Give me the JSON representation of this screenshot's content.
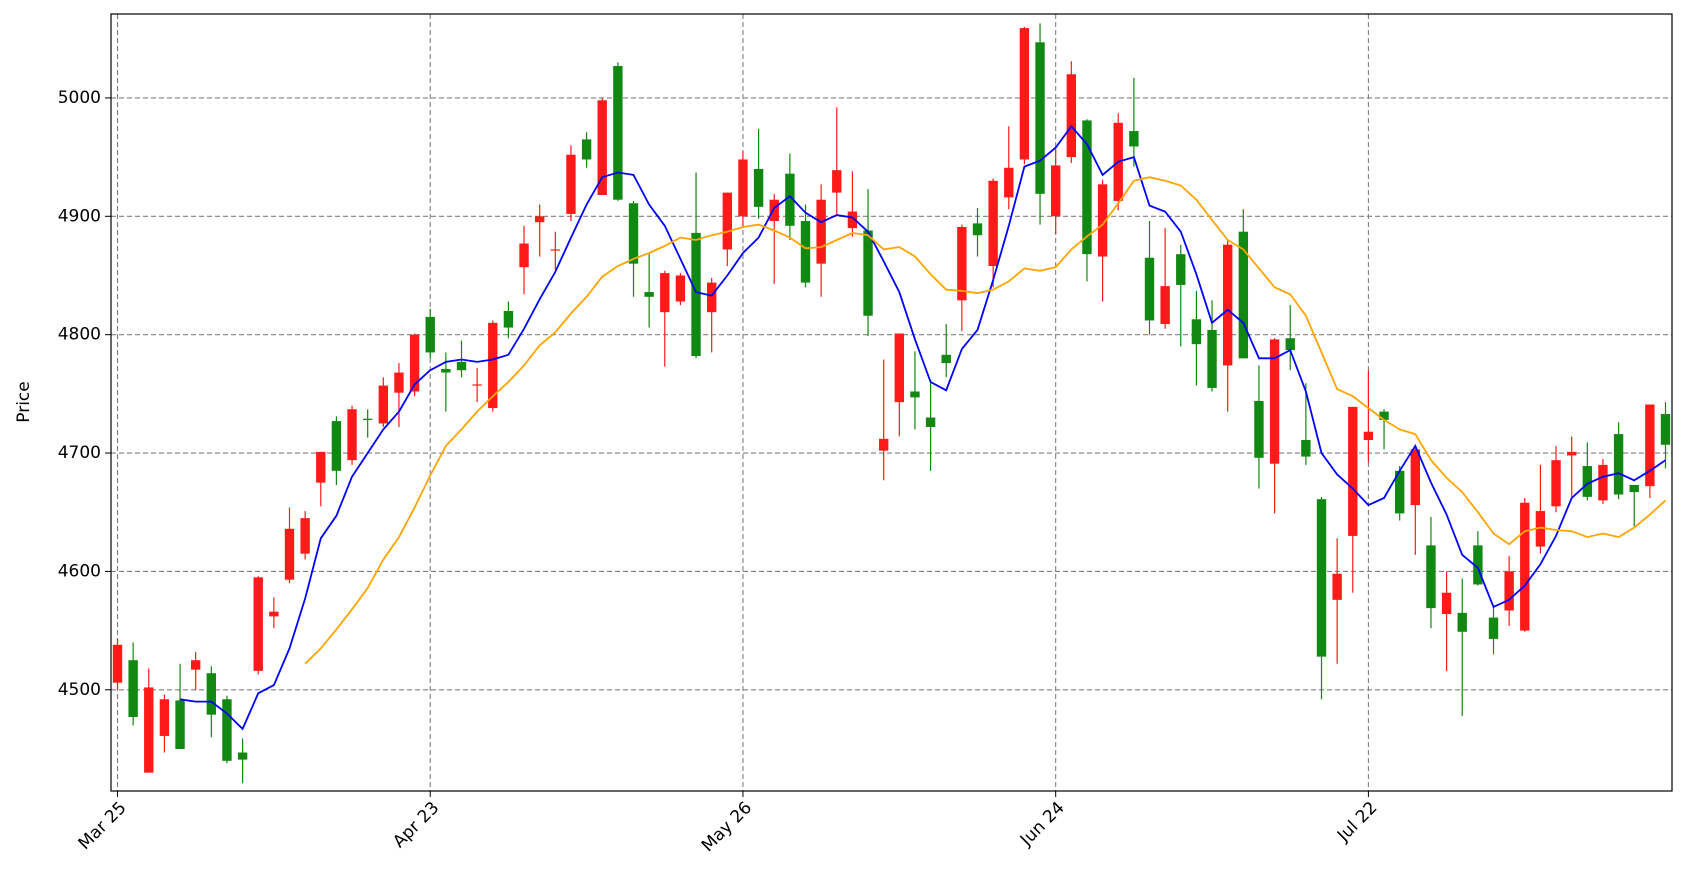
{
  "chart_data": {
    "type": "candlestick",
    "ylabel": "Price",
    "categories": [
      "Mar 25",
      null,
      null,
      null,
      null,
      null,
      null,
      null,
      null,
      null,
      null,
      null,
      null,
      null,
      null,
      null,
      null,
      null,
      null,
      null,
      "Apr 23",
      null,
      null,
      null,
      null,
      null,
      null,
      null,
      null,
      null,
      null,
      null,
      null,
      null,
      null,
      null,
      null,
      null,
      null,
      null,
      "May 26",
      null,
      null,
      null,
      null,
      null,
      null,
      null,
      null,
      null,
      null,
      null,
      null,
      null,
      null,
      null,
      null,
      null,
      null,
      null,
      "Jun 24",
      null,
      null,
      null,
      null,
      null,
      null,
      null,
      null,
      null,
      null,
      null,
      null,
      null,
      null,
      null,
      null,
      null,
      null,
      null,
      "Jul 22",
      null,
      null,
      null,
      null,
      null,
      null,
      null,
      null,
      null,
      null,
      null,
      null,
      null,
      null,
      null,
      null,
      null,
      null,
      null
    ],
    "open": [
      4506,
      4525,
      4430,
      4461,
      4491,
      4517,
      4514,
      4492,
      4447,
      4516,
      4562,
      4593,
      4615,
      4675,
      4727,
      4694,
      4729,
      4725,
      4751,
      4752,
      4815,
      4771,
      4777,
      4757,
      4738,
      4820,
      4857,
      4895,
      4871,
      4902,
      4965,
      4918,
      5027,
      4911,
      4836,
      4819,
      4828,
      4886,
      4819,
      4872,
      4900,
      4940,
      4896,
      4936,
      4896,
      4860,
      4920,
      4890,
      4888,
      4702,
      4743,
      4752,
      4730,
      4783,
      4829,
      4894,
      4858,
      4916,
      4948,
      5047,
      4900,
      4950,
      4981,
      4866,
      4913,
      4972,
      4865,
      4809,
      4868,
      4813,
      4804,
      4774,
      4887,
      4744,
      4691,
      4797,
      4711,
      4661,
      4576,
      4630,
      4711,
      4735,
      4685,
      4656,
      4622,
      4564,
      4565,
      4622,
      4561,
      4567,
      4550,
      4621,
      4655,
      4698,
      4689,
      4660,
      4716,
      4673,
      4672,
      4733
    ],
    "high": [
      4543,
      4540,
      4518,
      4496,
      4522,
      4532,
      4520,
      4495,
      4459,
      4596,
      4578,
      4654,
      4651,
      4701,
      4731,
      4740,
      4737,
      4764,
      4776,
      4801,
      4822,
      4785,
      4795,
      4772,
      4812,
      4828,
      4892,
      4910,
      4887,
      4960,
      4971,
      5000,
      5030,
      4913,
      4868,
      4854,
      4852,
      4937,
      4848,
      4920,
      4955,
      4974,
      4919,
      4953,
      4910,
      4927,
      4992,
      4938,
      4923,
      4779,
      4801,
      4786,
      4762,
      4809,
      4893,
      4907,
      4932,
      4976,
      5060,
      5063,
      4957,
      5031,
      4982,
      4931,
      4987,
      5017,
      4896,
      4890,
      4876,
      4837,
      4829,
      4880,
      4906,
      4774,
      4797,
      4825,
      4759,
      4663,
      4628,
      4739,
      4770,
      4737,
      4689,
      4707,
      4646,
      4600,
      4594,
      4634,
      4572,
      4613,
      4662,
      4690,
      4706,
      4714,
      4709,
      4695,
      4726,
      4673,
      4741,
      4743
    ],
    "low": [
      4500,
      4470,
      4430,
      4447,
      4450,
      4500,
      4460,
      4438,
      4421,
      4513,
      4552,
      4590,
      4610,
      4655,
      4673,
      4690,
      4713,
      4722,
      4722,
      4748,
      4780,
      4735,
      4764,
      4743,
      4735,
      4797,
      4834,
      4866,
      4855,
      4896,
      4941,
      4918,
      4913,
      4832,
      4806,
      4773,
      4825,
      4780,
      4785,
      4858,
      4890,
      4898,
      4843,
      4880,
      4840,
      4832,
      4900,
      4883,
      4799,
      4677,
      4714,
      4720,
      4685,
      4764,
      4803,
      4866,
      4840,
      4906,
      4944,
      4893,
      4885,
      4945,
      4845,
      4828,
      4905,
      4942,
      4800,
      4805,
      4790,
      4757,
      4752,
      4735,
      4780,
      4670,
      4649,
      4770,
      4690,
      4492,
      4522,
      4582,
      4692,
      4703,
      4643,
      4614,
      4552,
      4516,
      4478,
      4588,
      4530,
      4554,
      4549,
      4615,
      4650,
      4663,
      4660,
      4657,
      4661,
      4638,
      4662,
      4687
    ],
    "close": [
      4538,
      4477,
      4502,
      4492,
      4450,
      4525,
      4479,
      4440,
      4441,
      4595,
      4566,
      4636,
      4645,
      4701,
      4685,
      4737,
      4728,
      4757,
      4768,
      4800,
      4785,
      4768,
      4770,
      4758,
      4810,
      4806,
      4877,
      4900,
      4872,
      4952,
      4948,
      4998,
      4914,
      4860,
      4832,
      4852,
      4850,
      4782,
      4844,
      4920,
      4948,
      4908,
      4914,
      4892,
      4844,
      4914,
      4939,
      4904,
      4816,
      4712,
      4801,
      4747,
      4722,
      4776,
      4891,
      4884,
      4930,
      4941,
      5059,
      4919,
      4943,
      5020,
      4868,
      4927,
      4979,
      4959,
      4812,
      4841,
      4842,
      4792,
      4755,
      4876,
      4780,
      4696,
      4796,
      4787,
      4697,
      4528,
      4598,
      4739,
      4718,
      4728,
      4649,
      4703,
      4569,
      4582,
      4549,
      4589,
      4543,
      4600,
      4658,
      4651,
      4694,
      4701,
      4663,
      4690,
      4665,
      4667,
      4741,
      4707
    ],
    "up_color": "#ff1a1a",
    "down_color": "#118811",
    "series": [
      {
        "color": "blue",
        "values": [
          null,
          null,
          null,
          null,
          4492,
          4490,
          4490,
          4480,
          4467,
          4497,
          4504,
          4535,
          4577,
          4628,
          4647,
          4680,
          4700,
          4720,
          4735,
          4758,
          4770,
          4777,
          4779,
          4777,
          4779,
          4783,
          4805,
          4830,
          4853,
          4882,
          4910,
          4933,
          4937,
          4935,
          4910,
          4892,
          4864,
          4836,
          4833,
          4850,
          4869,
          4882,
          4907,
          4917,
          4903,
          4895,
          4901,
          4899,
          4887,
          4862,
          4836,
          4796,
          4760,
          4753,
          4788,
          4804,
          4846,
          4892,
          4942,
          4947,
          4958,
          4976,
          4961,
          4935,
          4946,
          4950,
          4909,
          4904,
          4887,
          4851,
          4810,
          4821,
          4810,
          4780,
          4780,
          4787,
          4752,
          4700,
          4682,
          4670,
          4656,
          4662,
          4685,
          4706,
          4675,
          4648,
          4614,
          4603,
          4570,
          4576,
          4588,
          4606,
          4630,
          4662,
          4674,
          4680,
          4683,
          4677,
          4685,
          4694
        ]
      },
      {
        "color": "orange",
        "values": [
          null,
          null,
          null,
          null,
          null,
          null,
          null,
          null,
          null,
          null,
          null,
          null,
          4522,
          4535,
          4551,
          4568,
          4586,
          4610,
          4629,
          4654,
          4681,
          4706,
          4720,
          4735,
          4748,
          4760,
          4774,
          4791,
          4802,
          4818,
          4832,
          4849,
          4858,
          4864,
          4869,
          4875,
          4882,
          4880,
          4884,
          4887,
          4891,
          4893,
          4888,
          4882,
          4873,
          4874,
          4880,
          4886,
          4884,
          4872,
          4874,
          4866,
          4851,
          4838,
          4837,
          4835,
          4838,
          4845,
          4856,
          4854,
          4857,
          4872,
          4883,
          4893,
          4911,
          4930,
          4933,
          4930,
          4926,
          4914,
          4897,
          4880,
          4872,
          4856,
          4840,
          4834,
          4816,
          4785,
          4754,
          4748,
          4738,
          4728,
          4720,
          4716,
          4694,
          4679,
          4667,
          4650,
          4632,
          4623,
          4634,
          4637,
          4635,
          4634,
          4629,
          4632,
          4629,
          4637,
          4648,
          4660
        ]
      }
    ],
    "ylim": [
      4414.5,
      5070.9
    ],
    "yticks": [
      4500,
      4600,
      4700,
      4800,
      4900,
      5000
    ],
    "grid": true
  }
}
